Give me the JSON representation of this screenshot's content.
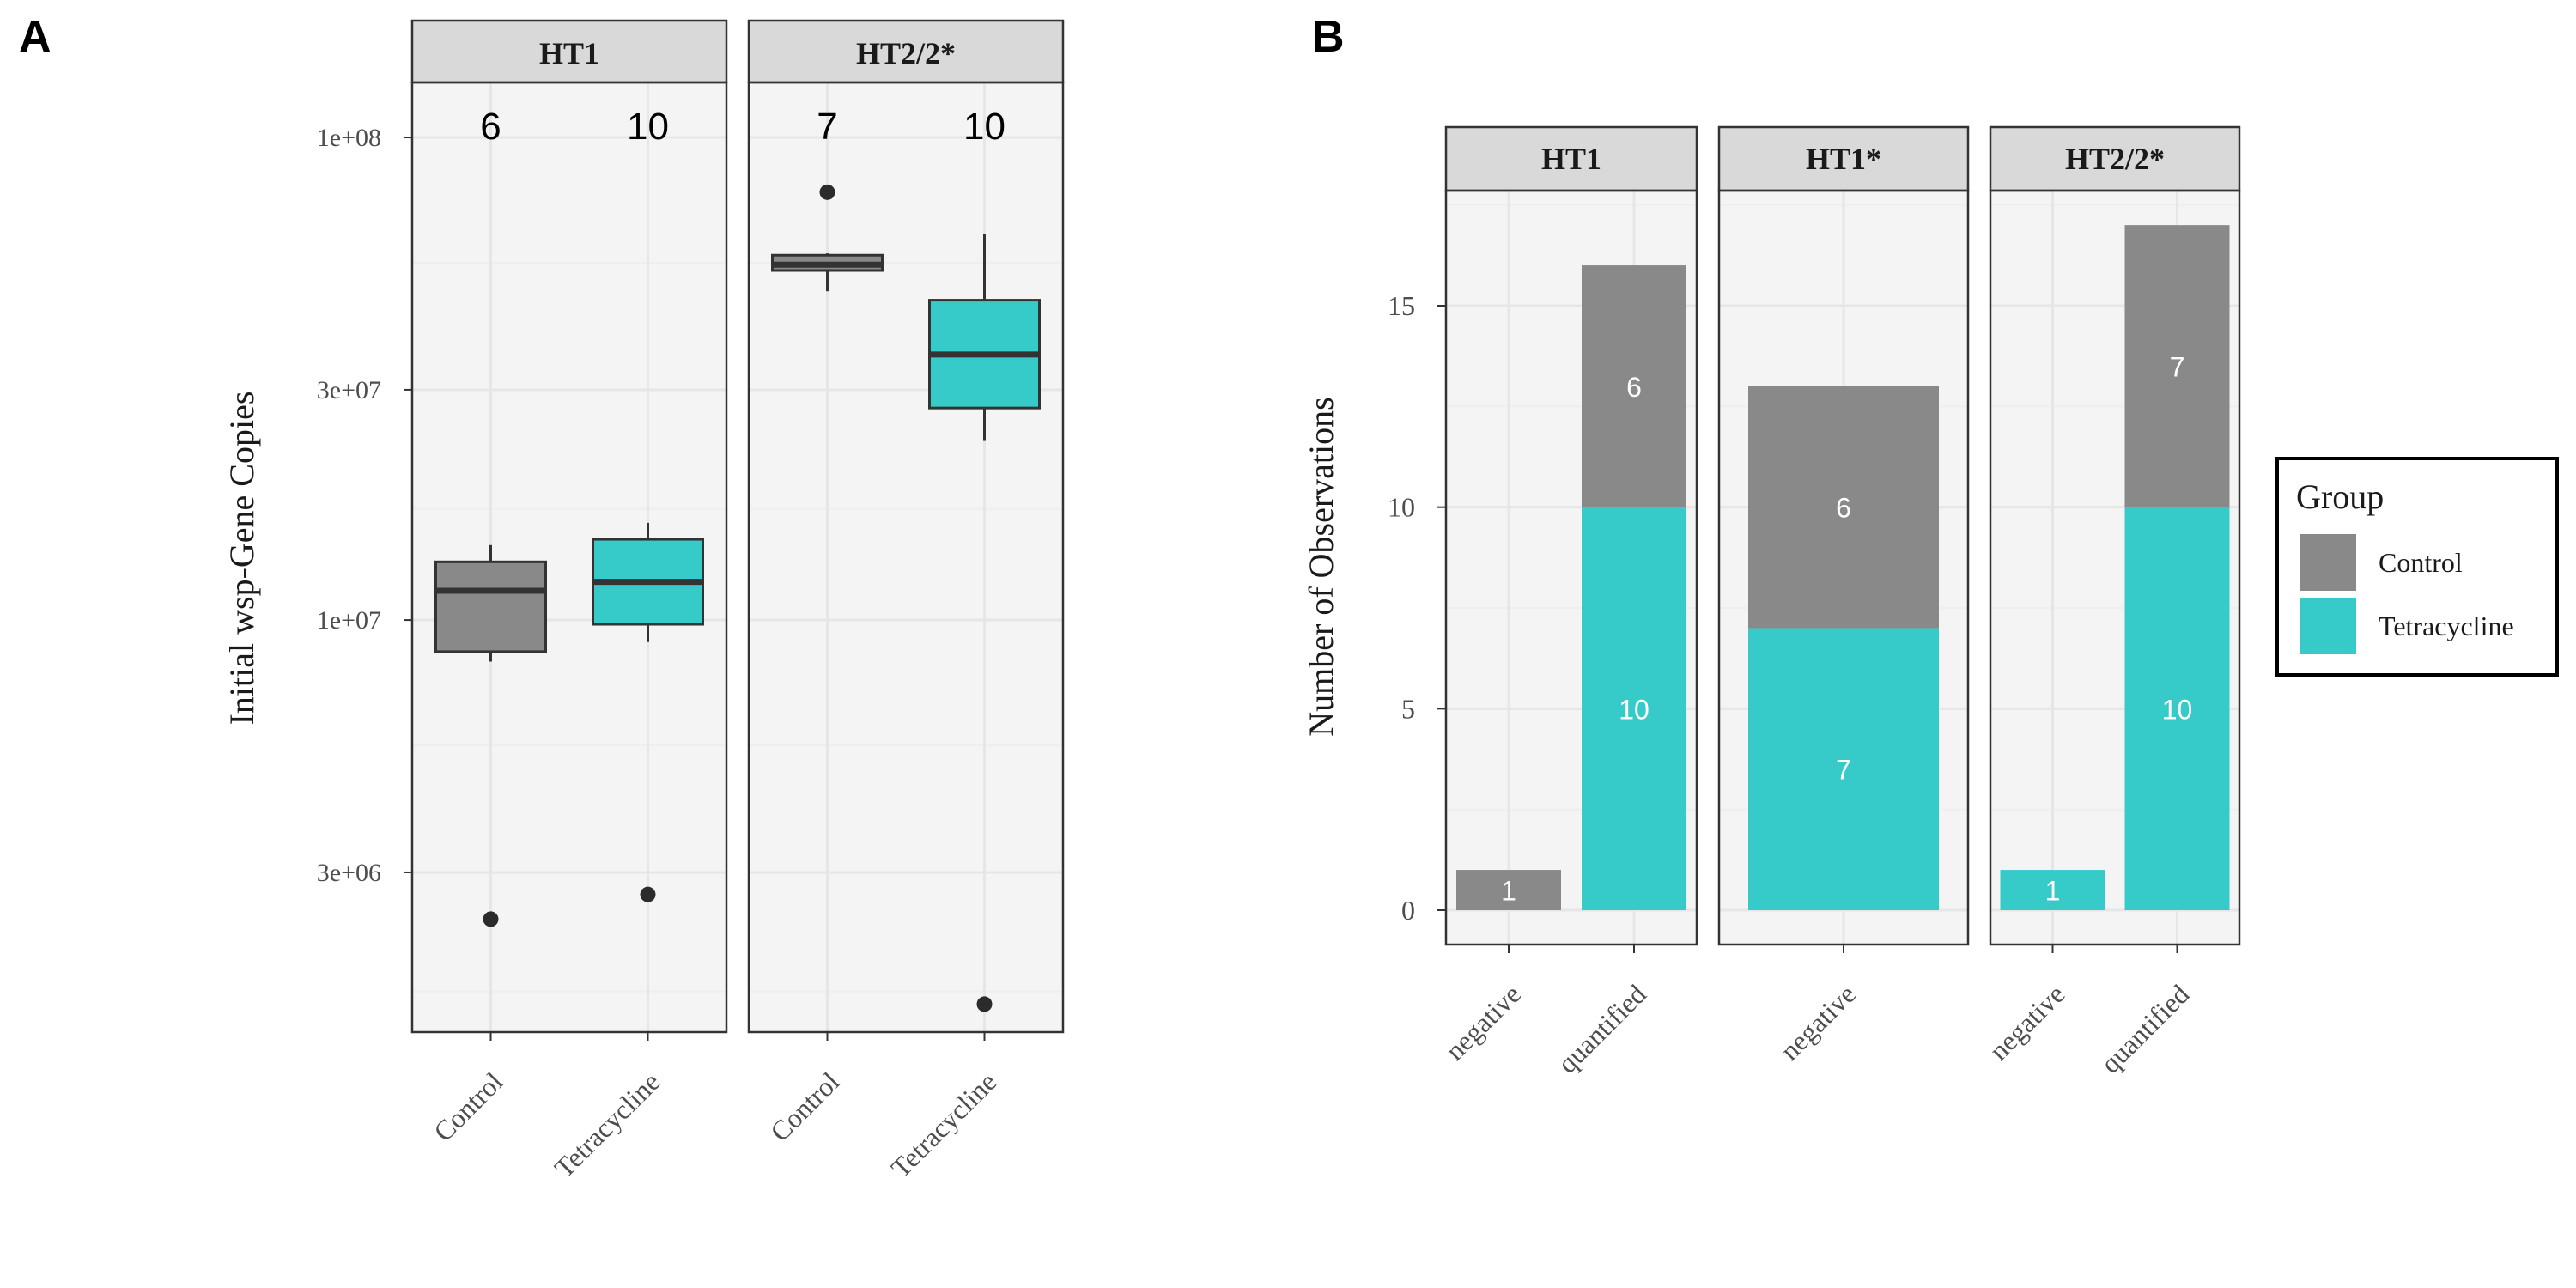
{
  "panel_labels": [
    "A",
    "B"
  ],
  "colors": {
    "control": "#898989",
    "tetracycline": "#36CBC9",
    "panel_bg": "#F4F4F4",
    "strip_bg": "#D9D9D9",
    "grid_major": "#E6E6E6",
    "grid_minor": "#EEEEEE",
    "border": "#333333",
    "point": "#2B2B2B"
  },
  "chart_data": [
    {
      "type": "box",
      "panel": "A",
      "ylabel": "Initial wsp-Gene Copies",
      "xlabel": "",
      "y_scale": "log10",
      "ylim": [
        1400000,
        130000000
      ],
      "y_ticks": [
        3000000,
        10000000,
        30000000,
        100000000
      ],
      "y_tick_labels": [
        "3e+06",
        "1e+07",
        "3e+07",
        "1e+08"
      ],
      "y_minor_ticks": [
        1700000,
        5500000,
        17000000,
        55000000
      ],
      "facets": [
        {
          "name": "HT1",
          "categories": [
            "Control",
            "Tetracycline"
          ],
          "boxes": [
            {
              "group": "Control",
              "n_label": "6",
              "whisker_low": 8200000,
              "q1": 8600000,
              "median": 11500000,
              "q3": 13200000,
              "whisker_high": 14300000,
              "outliers": [
                2400000
              ]
            },
            {
              "group": "Tetracycline",
              "n_label": "10",
              "whisker_low": 9000000,
              "q1": 9800000,
              "median": 12000000,
              "q3": 14700000,
              "whisker_high": 15900000,
              "outliers": [
                2700000
              ]
            }
          ]
        },
        {
          "name": "HT2/2*",
          "categories": [
            "Control",
            "Tetracycline"
          ],
          "boxes": [
            {
              "group": "Control",
              "n_label": "7",
              "whisker_low": 48000000,
              "q1": 53000000,
              "median": 54500000,
              "q3": 57000000,
              "whisker_high": 57500000,
              "outliers": [
                77000000
              ]
            },
            {
              "group": "Tetracycline",
              "n_label": "10",
              "whisker_low": 23500000,
              "q1": 27500000,
              "median": 35500000,
              "q3": 46000000,
              "whisker_high": 63000000,
              "outliers": [
                1600000
              ]
            }
          ]
        }
      ]
    },
    {
      "type": "bar",
      "stacked": true,
      "panel": "B",
      "ylabel": "Number of Observations",
      "xlabel": "",
      "ylim": [
        0,
        18
      ],
      "y_ticks": [
        0,
        5,
        10,
        15
      ],
      "legend": {
        "title": "Group",
        "position": "right",
        "entries": [
          "Control",
          "Tetracycline"
        ]
      },
      "facets": [
        {
          "name": "HT1",
          "categories": [
            "negative",
            "quantified"
          ],
          "bars": [
            {
              "category": "negative",
              "segments": [
                {
                  "group": "Control",
                  "value": 1,
                  "label": "1"
                }
              ]
            },
            {
              "category": "quantified",
              "segments": [
                {
                  "group": "Tetracycline",
                  "value": 10,
                  "label": "10"
                },
                {
                  "group": "Control",
                  "value": 6,
                  "label": "6"
                }
              ]
            }
          ]
        },
        {
          "name": "HT1*",
          "categories": [
            "negative"
          ],
          "bars": [
            {
              "category": "negative",
              "segments": [
                {
                  "group": "Tetracycline",
                  "value": 7,
                  "label": "7"
                },
                {
                  "group": "Control",
                  "value": 6,
                  "label": "6"
                }
              ]
            }
          ]
        },
        {
          "name": "HT2/2*",
          "categories": [
            "negative",
            "quantified"
          ],
          "bars": [
            {
              "category": "negative",
              "segments": [
                {
                  "group": "Tetracycline",
                  "value": 1,
                  "label": "1"
                }
              ]
            },
            {
              "category": "quantified",
              "segments": [
                {
                  "group": "Tetracycline",
                  "value": 10,
                  "label": "10"
                },
                {
                  "group": "Control",
                  "value": 7,
                  "label": "7"
                }
              ]
            }
          ]
        }
      ]
    }
  ]
}
